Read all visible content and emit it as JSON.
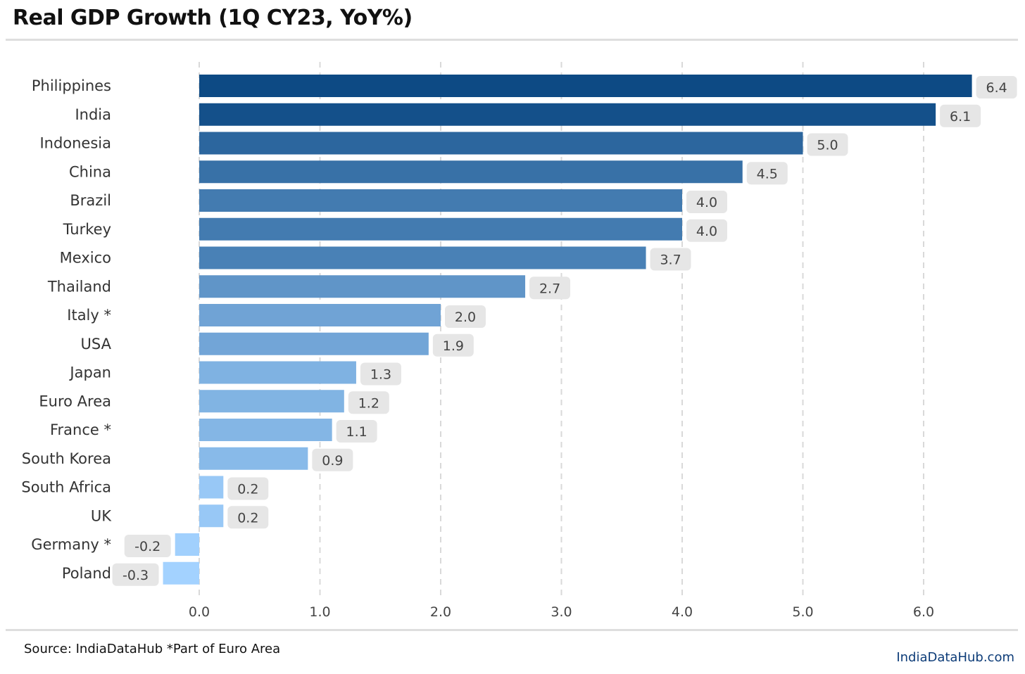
{
  "header": {
    "title": "Real GDP Growth (1Q CY23, YoY%)"
  },
  "footer": {
    "source": "Source: IndiaDataHub *Part of Euro Area",
    "brand": "IndiaDataHub.com"
  },
  "colors": {
    "bar_dark": "#0d4a84",
    "bar_light": "#a3d2ff",
    "label_box": "#e6e6e6",
    "grid": "#d9d9d9",
    "brand": "#0d3c78"
  },
  "chart_data": {
    "type": "bar",
    "orientation": "horizontal",
    "title": "Real GDP Growth (1Q CY23, YoY%)",
    "xlabel": "",
    "ylabel": "",
    "xlim": [
      -0.65,
      6.6
    ],
    "grid": "vertical dashed",
    "legend": "none",
    "tick_labels": [
      "0.0",
      "1.0",
      "2.0",
      "3.0",
      "4.0",
      "5.0",
      "6.0"
    ],
    "ticks": [
      0,
      1,
      2,
      3,
      4,
      5,
      6
    ],
    "categories": [
      "Philippines",
      "India",
      "Indonesia",
      "China",
      "Brazil",
      "Turkey",
      "Mexico",
      "Thailand",
      "Italy *",
      "USA",
      "Japan",
      "Euro Area",
      "France *",
      "South Korea",
      "South Africa",
      "UK",
      "Germany *",
      "Poland"
    ],
    "values": [
      6.4,
      6.1,
      5.0,
      4.5,
      4.0,
      4.0,
      3.7,
      2.7,
      2.0,
      1.9,
      1.3,
      1.2,
      1.1,
      0.9,
      0.2,
      0.2,
      -0.2,
      -0.3
    ],
    "data_labels": [
      "6.4",
      "6.1",
      "5.0",
      "4.5",
      "4.0",
      "4.0",
      "3.7",
      "2.7",
      "2.0",
      "1.9",
      "1.3",
      "1.2",
      "1.1",
      "0.9",
      "0.2",
      "0.2",
      "-0.2",
      "-0.3"
    ]
  }
}
